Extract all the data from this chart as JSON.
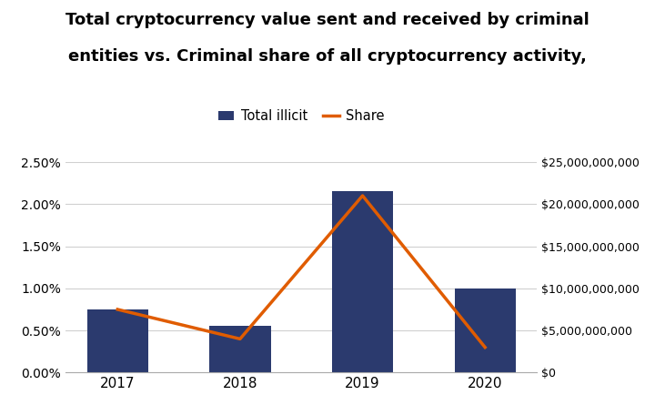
{
  "title_line1": "Total cryptocurrency value sent and received by criminal",
  "title_line2": "entities vs. Criminal share of all cryptocurrency activity,",
  "years": [
    2017,
    2018,
    2019,
    2020
  ],
  "bar_values": [
    0.0075,
    0.0055,
    0.0215,
    0.01
  ],
  "line_values": [
    7500000000,
    4000000000,
    21000000000,
    3000000000
  ],
  "bar_color": "#2b3a6e",
  "line_color": "#e05c00",
  "left_ylim": [
    0,
    0.025
  ],
  "right_ylim": [
    0,
    25000000000
  ],
  "left_yticks": [
    0.0,
    0.005,
    0.01,
    0.015,
    0.02,
    0.025
  ],
  "right_yticks": [
    0,
    5000000000,
    10000000000,
    15000000000,
    20000000000,
    25000000000
  ],
  "legend_labels": [
    "Total illicit",
    "Share"
  ],
  "title_fontsize": 13,
  "bar_width": 0.5,
  "figsize": [
    7.2,
    4.45
  ],
  "dpi": 100
}
